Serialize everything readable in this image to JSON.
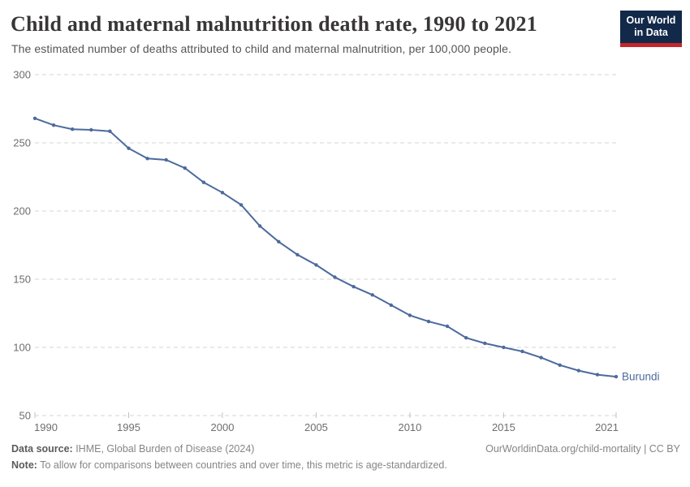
{
  "header": {
    "title": "Child and maternal malnutrition death rate, 1990 to 2021",
    "subtitle": "The estimated number of deaths attributed to child and maternal malnutrition, per 100,000 people.",
    "logo": {
      "line1": "Our World",
      "line2": "in Data",
      "bg_color": "#12294a",
      "accent_color": "#c5262b"
    }
  },
  "chart_data": {
    "type": "line",
    "title": "Child and maternal malnutrition death rate, 1990 to 2021",
    "subtitle": "The estimated number of deaths attributed to child and maternal malnutrition, per 100,000 people.",
    "xlabel": "",
    "ylabel": "",
    "xlim": [
      1990,
      2021
    ],
    "ylim": [
      50,
      300
    ],
    "x_ticks": [
      1990,
      1995,
      2000,
      2005,
      2010,
      2015,
      2021
    ],
    "y_ticks": [
      300,
      250,
      200,
      150,
      100,
      50
    ],
    "grid": "horizontal-dashed",
    "legend_position": "end-of-line-label",
    "colors": {
      "line": "#4C6A9C",
      "grid": "#d6d6d6",
      "axis_text": "#6e6e6e"
    },
    "series": [
      {
        "name": "Burundi",
        "color": "#4C6A9C",
        "x": [
          1990,
          1991,
          1992,
          1993,
          1994,
          1995,
          1996,
          1997,
          1998,
          1999,
          2000,
          2001,
          2002,
          2003,
          2004,
          2005,
          2006,
          2007,
          2008,
          2009,
          2010,
          2011,
          2012,
          2013,
          2014,
          2015,
          2016,
          2017,
          2018,
          2019,
          2020,
          2021
        ],
        "values": [
          268,
          263,
          260,
          259.5,
          258.5,
          246,
          238.5,
          237.5,
          231.5,
          221,
          213.5,
          204.5,
          189,
          177.5,
          168,
          160.5,
          151.5,
          144.5,
          138.5,
          131,
          123.5,
          119,
          115.5,
          107,
          103,
          100,
          97,
          92.5,
          87,
          83,
          80,
          78.5
        ]
      }
    ]
  },
  "footer": {
    "datasource_label": "Data source:",
    "datasource_value": " IHME, Global Burden of Disease (2024)",
    "link": "OurWorldinData.org/child-mortality | CC BY",
    "note_label": "Note:",
    "note_value": " To allow for comparisons between countries and over time, this metric is age-standardized."
  }
}
